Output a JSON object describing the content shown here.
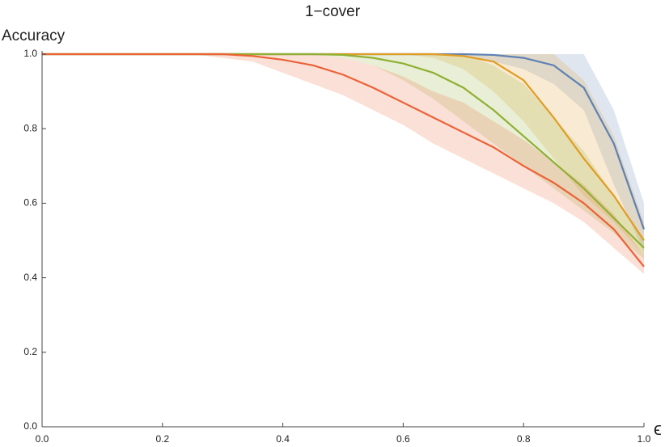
{
  "chart_data": {
    "type": "line",
    "title": "1−cover",
    "y_label": "Accuracy",
    "x_label": "ϵ",
    "x": [
      0,
      0.05,
      0.1,
      0.15,
      0.2,
      0.25,
      0.3,
      0.35,
      0.4,
      0.45,
      0.5,
      0.55,
      0.6,
      0.65,
      0.7,
      0.75,
      0.8,
      0.85,
      0.9,
      0.95,
      1.0
    ],
    "series": [
      {
        "color": "#5e81b5",
        "values": [
          1,
          1,
          1,
          1,
          1,
          1,
          1,
          1,
          1,
          1,
          1,
          1,
          1,
          1,
          1,
          0.998,
          0.99,
          0.97,
          0.91,
          0.76,
          0.53
        ],
        "upper": [
          1,
          1,
          1,
          1,
          1,
          1,
          1,
          1,
          1,
          1,
          1,
          1,
          1,
          1,
          1,
          1,
          1,
          1,
          1,
          0.85,
          0.6
        ],
        "lower": [
          1,
          1,
          1,
          1,
          1,
          1,
          1,
          1,
          1,
          1,
          1,
          1,
          1,
          1,
          0.995,
          0.98,
          0.96,
          0.92,
          0.85,
          0.65,
          0.47
        ]
      },
      {
        "color": "#e19c24",
        "values": [
          1,
          1,
          1,
          1,
          1,
          1,
          1,
          1,
          1,
          1,
          1,
          1,
          1,
          1,
          0.995,
          0.98,
          0.93,
          0.83,
          0.72,
          0.62,
          0.5
        ],
        "upper": [
          1,
          1,
          1,
          1,
          1,
          1,
          1,
          1,
          1,
          1,
          1,
          1,
          1,
          1,
          1,
          1,
          1,
          1,
          0.93,
          0.78,
          0.55
        ],
        "lower": [
          1,
          1,
          1,
          1,
          1,
          1,
          1,
          1,
          1,
          1,
          1,
          1,
          1,
          0.99,
          0.96,
          0.9,
          0.82,
          0.72,
          0.62,
          0.55,
          0.46
        ]
      },
      {
        "color": "#8fb032",
        "values": [
          1,
          1,
          1,
          1,
          1,
          1,
          1,
          1,
          1,
          1,
          0.998,
          0.99,
          0.975,
          0.95,
          0.91,
          0.85,
          0.78,
          0.71,
          0.64,
          0.56,
          0.48
        ],
        "upper": [
          1,
          1,
          1,
          1,
          1,
          1,
          1,
          1,
          1,
          1,
          1,
          1,
          1,
          1,
          1,
          0.97,
          0.92,
          0.83,
          0.74,
          0.62,
          0.5
        ],
        "lower": [
          1,
          1,
          1,
          1,
          1,
          1,
          1,
          1,
          1,
          1,
          0.99,
          0.97,
          0.93,
          0.88,
          0.82,
          0.76,
          0.7,
          0.64,
          0.58,
          0.52,
          0.45
        ]
      },
      {
        "color": "#eb6235",
        "values": [
          1,
          1,
          1,
          1,
          1,
          1,
          1,
          0.995,
          0.985,
          0.97,
          0.945,
          0.91,
          0.87,
          0.83,
          0.79,
          0.75,
          0.7,
          0.655,
          0.6,
          0.53,
          0.43
        ],
        "upper": [
          1,
          1,
          1,
          1,
          1,
          1,
          1,
          1,
          1,
          1,
          0.99,
          0.97,
          0.94,
          0.9,
          0.87,
          0.82,
          0.77,
          0.71,
          0.65,
          0.57,
          0.46
        ],
        "lower": [
          1,
          1,
          1,
          1,
          1,
          1,
          0.99,
          0.98,
          0.95,
          0.92,
          0.89,
          0.85,
          0.81,
          0.76,
          0.72,
          0.68,
          0.64,
          0.6,
          0.55,
          0.48,
          0.41
        ]
      }
    ],
    "xlim": [
      0,
      1
    ],
    "ylim": [
      0,
      1
    ],
    "xticks": [
      {
        "value": 0,
        "label": "0.0"
      },
      0.2,
      0.4,
      0.6,
      0.8,
      {
        "value": 1,
        "label": "1.0"
      }
    ],
    "yticks": [
      {
        "value": 0,
        "label": "0.0"
      },
      0.2,
      0.4,
      0.6,
      0.8,
      {
        "value": 1,
        "label": "1.0"
      }
    ],
    "band_opacity": 0.2
  }
}
